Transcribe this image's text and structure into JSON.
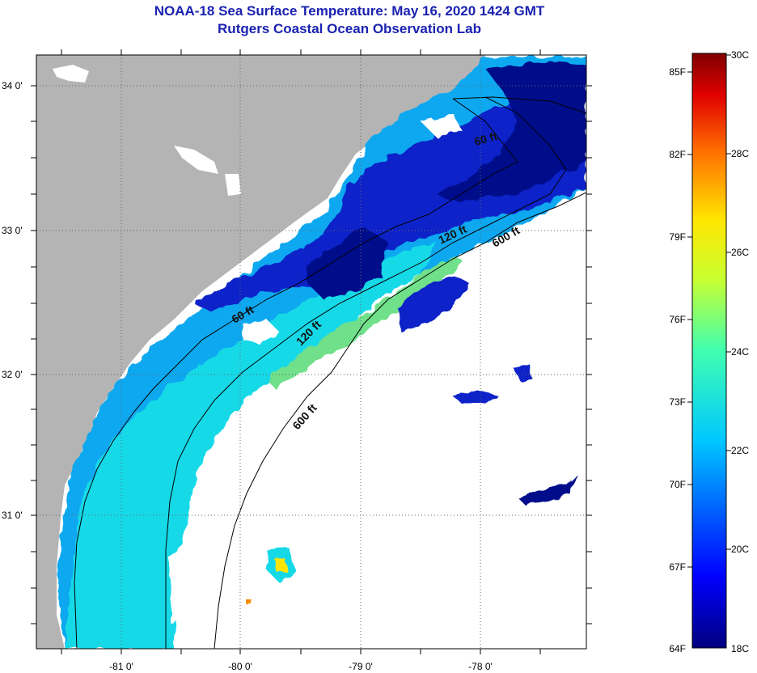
{
  "title": "NOAA-18 Sea Surface Temperature:  May 16, 2020 1424 GMT",
  "subtitle": "Rutgers Coastal Ocean Observation Lab",
  "colors": {
    "title": "#1a22b0",
    "land": "#b4b4b4",
    "cloud_no_data": "#ffffff"
  },
  "map": {
    "lat_labels": [
      "34 0'",
      "33 0'",
      "32 0'",
      "31 0'"
    ],
    "lon_labels": [
      "-81 0'",
      "-80 0'",
      "-79 0'",
      "-78 0'"
    ],
    "lat_values": [
      34,
      33,
      32,
      31
    ],
    "lon_values": [
      -81,
      -80,
      -79,
      -78
    ],
    "contour_labels": [
      "60 ft",
      "120 ft",
      "600 ft",
      "60 ft",
      "120 ft",
      "600 ft"
    ]
  },
  "colorbar": {
    "fahrenheit_labels": [
      "85F",
      "82F",
      "79F",
      "76F",
      "73F",
      "70F",
      "67F",
      "64F"
    ],
    "celsius_labels": [
      "30C",
      "28C",
      "26C",
      "24C",
      "22C",
      "20C",
      "18C"
    ],
    "range_c": [
      18,
      30
    ],
    "colormap": "jet"
  }
}
